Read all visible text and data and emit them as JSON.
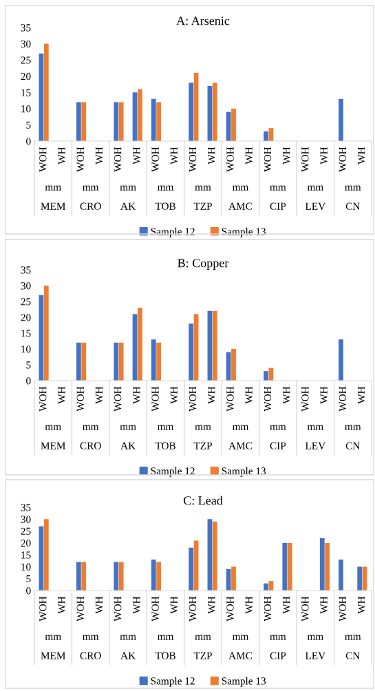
{
  "chart_data": [
    {
      "type": "bar",
      "title": "A: Arsenic",
      "categories": [
        "WOH",
        "WH",
        "WOH",
        "WH",
        "WOH",
        "WH",
        "WOH",
        "WH",
        "WOH",
        "WH",
        "WOH",
        "WH",
        "WOH",
        "WH",
        "WOH",
        "WH",
        "WOH",
        "WH"
      ],
      "annotations": [
        "mm",
        "MEM",
        "mm",
        "CRO",
        "mm",
        "AK",
        "mm",
        "TOB",
        "mm",
        "TZP",
        "mm",
        "AMC",
        "mm",
        "CIP",
        "mm",
        "LEV",
        "mm",
        "CN"
      ],
      "series": [
        {
          "name": "Sample 12",
          "color": "#4472c4",
          "values": [
            27,
            null,
            12,
            null,
            12,
            15,
            13,
            null,
            18,
            17,
            9,
            null,
            3,
            null,
            null,
            null,
            13,
            null
          ]
        },
        {
          "name": "Sample 13",
          "color": "#ed7d31",
          "values": [
            30,
            null,
            12,
            null,
            12,
            16,
            12,
            null,
            21,
            18,
            10,
            null,
            4,
            null,
            null,
            null,
            null,
            null
          ]
        }
      ],
      "ylim": [
        0,
        35
      ],
      "yticks": [
        0,
        5,
        10,
        15,
        20,
        25,
        30,
        35
      ],
      "legend": "bottom"
    },
    {
      "type": "bar",
      "title": "B: Copper",
      "categories": [
        "WOH",
        "WH",
        "WOH",
        "WH",
        "WOH",
        "WH",
        "WOH",
        "WH",
        "WOH",
        "WH",
        "WOH",
        "WH",
        "WOH",
        "WH",
        "WOH",
        "WH",
        "WOH",
        "WH"
      ],
      "annotations": [
        "mm",
        "MEM",
        "mm",
        "CRO",
        "mm",
        "AK",
        "mm",
        "TOB",
        "mm",
        "TZP",
        "mm",
        "AMC",
        "mm",
        "CIP",
        "mm",
        "LEV",
        "mm",
        "CN"
      ],
      "series": [
        {
          "name": "Sample 12",
          "color": "#4472c4",
          "values": [
            27,
            null,
            12,
            null,
            12,
            21,
            13,
            null,
            18,
            22,
            9,
            null,
            3,
            null,
            null,
            null,
            13,
            null
          ]
        },
        {
          "name": "Sample 13",
          "color": "#ed7d31",
          "values": [
            30,
            null,
            12,
            null,
            12,
            23,
            12,
            null,
            21,
            22,
            10,
            null,
            4,
            null,
            null,
            null,
            null,
            null
          ]
        }
      ],
      "ylim": [
        0,
        35
      ],
      "yticks": [
        0,
        5,
        10,
        15,
        20,
        25,
        30,
        35
      ],
      "legend": "bottom"
    },
    {
      "type": "bar",
      "title": "C: Lead",
      "categories": [
        "WOH",
        "WH",
        "WOH",
        "WH",
        "WOH",
        "WH",
        "WOH",
        "WH",
        "WOH",
        "WH",
        "WOH",
        "WH",
        "WOH",
        "WH",
        "WOH",
        "WH",
        "WOH",
        "WH"
      ],
      "annotations": [
        "mm",
        "MEM",
        "mm",
        "CRO",
        "mm",
        "AK",
        "mm",
        "TOB",
        "mm",
        "TZP",
        "mm",
        "AMC",
        "mm",
        "CIP",
        "mm",
        "LEV",
        "mm",
        "CN"
      ],
      "series": [
        {
          "name": "Sample 12",
          "color": "#4472c4",
          "values": [
            27,
            null,
            12,
            null,
            12,
            null,
            13,
            null,
            18,
            30,
            9,
            null,
            3,
            20,
            null,
            22,
            13,
            10
          ]
        },
        {
          "name": "Sample 13",
          "color": "#ed7d31",
          "values": [
            30,
            null,
            12,
            null,
            12,
            null,
            12,
            null,
            21,
            29,
            10,
            null,
            4,
            20,
            null,
            20,
            null,
            10
          ]
        }
      ],
      "ylim": [
        0,
        35
      ],
      "yticks": [
        0,
        5,
        10,
        15,
        20,
        25,
        30,
        35
      ],
      "legend": "bottom"
    }
  ]
}
